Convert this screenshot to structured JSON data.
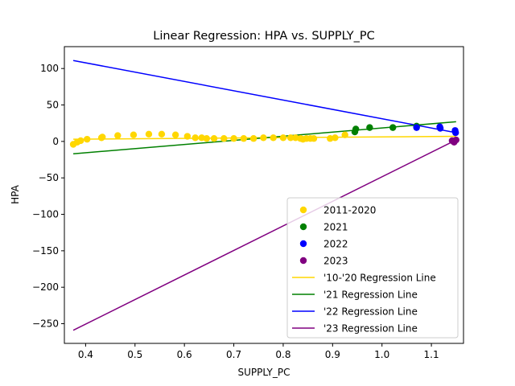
{
  "chart_data": {
    "type": "scatter",
    "title": "Linear Regression: HPA vs. SUPPLY_PC",
    "xlabel": "SUPPLY_PC",
    "ylabel": "HPA",
    "xlim": [
      0.357,
      1.165
    ],
    "ylim": [
      -277,
      130
    ],
    "xticks": [
      0.4,
      0.5,
      0.6,
      0.7,
      0.8,
      0.9,
      1.0,
      1.1
    ],
    "xtick_labels": [
      "0.4",
      "0.5",
      "0.6",
      "0.7",
      "0.8",
      "0.9",
      "1.0",
      "1.1"
    ],
    "yticks": [
      -250,
      -200,
      -150,
      -100,
      -50,
      0,
      50,
      100
    ],
    "ytick_labels": [
      "−250",
      "−200",
      "−150",
      "−100",
      "−50",
      "0",
      "50",
      "100"
    ],
    "legend_position": "lower-right",
    "scatter_series": [
      {
        "name": "2011-2020",
        "color": "#ffd700",
        "points": [
          [
            0.375,
            -4
          ],
          [
            0.383,
            -1
          ],
          [
            0.39,
            1
          ],
          [
            0.403,
            3
          ],
          [
            0.432,
            5
          ],
          [
            0.434,
            6
          ],
          [
            0.465,
            8
          ],
          [
            0.497,
            9
          ],
          [
            0.528,
            10
          ],
          [
            0.554,
            10
          ],
          [
            0.582,
            9
          ],
          [
            0.606,
            7
          ],
          [
            0.622,
            5
          ],
          [
            0.635,
            5
          ],
          [
            0.645,
            4
          ],
          [
            0.66,
            4
          ],
          [
            0.68,
            4
          ],
          [
            0.7,
            4
          ],
          [
            0.72,
            4
          ],
          [
            0.74,
            4
          ],
          [
            0.76,
            5
          ],
          [
            0.78,
            5
          ],
          [
            0.8,
            5
          ],
          [
            0.815,
            5
          ],
          [
            0.825,
            5
          ],
          [
            0.835,
            4
          ],
          [
            0.84,
            3
          ],
          [
            0.847,
            4
          ],
          [
            0.855,
            4
          ],
          [
            0.862,
            4
          ],
          [
            0.895,
            4
          ],
          [
            0.905,
            5
          ],
          [
            0.925,
            9
          ]
        ]
      },
      {
        "name": "2021",
        "color": "#008000",
        "points": [
          [
            0.945,
            13
          ],
          [
            0.947,
            17
          ],
          [
            0.975,
            19
          ],
          [
            1.022,
            19
          ],
          [
            1.07,
            21
          ]
        ]
      },
      {
        "name": "2022",
        "color": "#0000ff",
        "points": [
          [
            1.07,
            19
          ],
          [
            1.117,
            20
          ],
          [
            1.118,
            18
          ],
          [
            1.148,
            15
          ],
          [
            1.149,
            12
          ]
        ]
      },
      {
        "name": "2023",
        "color": "#800080",
        "points": [
          [
            1.142,
            1
          ],
          [
            1.146,
            -1
          ],
          [
            1.15,
            2
          ]
        ]
      }
    ],
    "line_series": [
      {
        "name": "'10-'20 Regression Line",
        "color": "#ffd700",
        "x": [
          0.375,
          1.15
        ],
        "y": [
          3,
          7
        ]
      },
      {
        "name": "'21 Regression Line",
        "color": "#008000",
        "x": [
          0.375,
          1.15
        ],
        "y": [
          -17,
          27
        ]
      },
      {
        "name": "'22 Regression Line",
        "color": "#0000ff",
        "x": [
          0.375,
          1.15
        ],
        "y": [
          111,
          12
        ]
      },
      {
        "name": "'23 Regression Line",
        "color": "#800080",
        "x": [
          0.375,
          1.15
        ],
        "y": [
          -259,
          2
        ]
      }
    ]
  }
}
